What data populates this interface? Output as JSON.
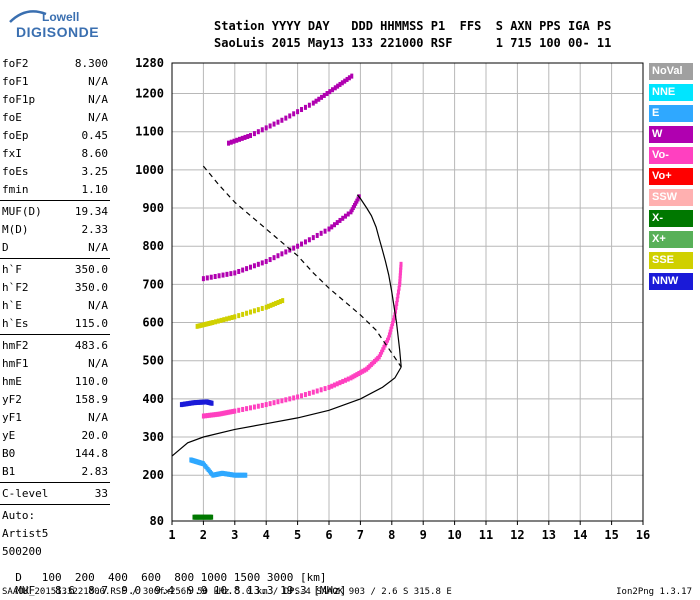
{
  "logo": {
    "line1": "Lowell",
    "line2": "DIGISONDE"
  },
  "header": {
    "line1": "Station YYYY DAY   DDD HHMMSS P1  FFS  S AXN PPS IGA PS",
    "line2": "SaoLuis 2015 May13 133 221000 RSF      1 715 100 00- 11"
  },
  "params": [
    {
      "k": "foF2",
      "v": "8.300"
    },
    {
      "k": "foF1",
      "v": "N/A"
    },
    {
      "k": "foF1p",
      "v": "N/A"
    },
    {
      "k": "foE",
      "v": "N/A"
    },
    {
      "k": "foEp",
      "v": "0.45"
    },
    {
      "k": "fxI",
      "v": "8.60"
    },
    {
      "k": "foEs",
      "v": "3.25"
    },
    {
      "k": "fmin",
      "v": "1.10"
    },
    {
      "k": "MUF(D)",
      "v": "19.34"
    },
    {
      "k": "M(D)",
      "v": "2.33"
    },
    {
      "k": "D",
      "v": "N/A"
    },
    {
      "k": "h`F",
      "v": "350.0"
    },
    {
      "k": "h`F2",
      "v": "350.0"
    },
    {
      "k": "h`E",
      "v": "N/A"
    },
    {
      "k": "h`Es",
      "v": "115.0"
    },
    {
      "k": "hmF2",
      "v": "483.6"
    },
    {
      "k": "hmF1",
      "v": "N/A"
    },
    {
      "k": "hmE",
      "v": "110.0"
    },
    {
      "k": "yF2",
      "v": "158.9"
    },
    {
      "k": "yF1",
      "v": "N/A"
    },
    {
      "k": "yE",
      "v": "20.0"
    },
    {
      "k": "B0",
      "v": "144.8"
    },
    {
      "k": "B1",
      "v": "2.83"
    },
    {
      "k": "C-level",
      "v": "33"
    }
  ],
  "autoscale": {
    "label": "Auto:",
    "artist": "Artist5",
    "version": "500200"
  },
  "legend": [
    {
      "label": "NoVal",
      "color": "#a0a0a0"
    },
    {
      "label": "NNE",
      "color": "#00e5ff"
    },
    {
      "label": "E",
      "color": "#2fa8ff"
    },
    {
      "label": "W",
      "color": "#b000b0"
    },
    {
      "label": "Vo-",
      "color": "#ff40c0"
    },
    {
      "label": "Vo+",
      "color": "#ff0000"
    },
    {
      "label": "SSW",
      "color": "#ffb0b0"
    },
    {
      "label": "X-",
      "color": "#007800"
    },
    {
      "label": "X+",
      "color": "#58b058"
    },
    {
      "label": "SSE",
      "color": "#d0d000"
    },
    {
      "label": "NNW",
      "color": "#1a1ad8"
    }
  ],
  "chart_data": {
    "type": "scatter",
    "xlim": [
      1,
      16
    ],
    "ylim": [
      80,
      1280
    ],
    "x_ticks": [
      "1",
      "2",
      "3",
      "4",
      "5",
      "6",
      "7",
      "8",
      "9",
      "10",
      "11",
      "12",
      "13",
      "14",
      "15",
      "16"
    ],
    "y_ticks": [
      "80",
      "200",
      "300",
      "400",
      "500",
      "600",
      "700",
      "800",
      "900",
      "1000",
      "1100",
      "1200",
      "1280"
    ],
    "y_tick_values": [
      80,
      200,
      300,
      400,
      500,
      600,
      700,
      800,
      900,
      1000,
      1100,
      1200,
      1280
    ],
    "grid": true,
    "echo_traces": [
      {
        "name": "E sporadic low",
        "color": "#007800",
        "points": [
          [
            1.7,
            90
          ],
          [
            2.0,
            90
          ],
          [
            2.3,
            90
          ]
        ]
      },
      {
        "name": "F trace",
        "color": "#ff40c0",
        "points": [
          [
            2.0,
            355
          ],
          [
            2.5,
            360
          ],
          [
            3.0,
            368
          ],
          [
            4.0,
            385
          ],
          [
            5.0,
            405
          ],
          [
            6.0,
            430
          ],
          [
            6.7,
            455
          ],
          [
            7.2,
            478
          ],
          [
            7.6,
            510
          ],
          [
            7.9,
            560
          ],
          [
            8.1,
            620
          ],
          [
            8.25,
            700
          ],
          [
            8.3,
            760
          ]
        ]
      },
      {
        "name": "F 2nd hop",
        "color": "#b000b0",
        "points": [
          [
            2.0,
            715
          ],
          [
            3.0,
            730
          ],
          [
            4.0,
            760
          ],
          [
            5.0,
            800
          ],
          [
            6.0,
            845
          ],
          [
            6.7,
            890
          ],
          [
            7.0,
            935
          ]
        ]
      },
      {
        "name": "F 3rd hop",
        "color": "#b000b0",
        "points": [
          [
            2.8,
            1070
          ],
          [
            3.5,
            1090
          ],
          [
            4.5,
            1130
          ],
          [
            5.5,
            1175
          ],
          [
            6.2,
            1215
          ],
          [
            6.8,
            1250
          ]
        ]
      },
      {
        "name": "Es multiple",
        "color": "#d0d000",
        "points": [
          [
            1.8,
            590
          ],
          [
            2.3,
            600
          ],
          [
            3.0,
            615
          ],
          [
            4.0,
            640
          ],
          [
            4.6,
            660
          ]
        ]
      },
      {
        "name": "Es layer",
        "color": "#1a1ad8",
        "points": [
          [
            1.3,
            385
          ],
          [
            1.7,
            390
          ],
          [
            2.1,
            392
          ],
          [
            2.3,
            388
          ]
        ]
      },
      {
        "name": "Oblique E",
        "color": "#2fa8ff",
        "points": [
          [
            1.6,
            240
          ],
          [
            1.8,
            235
          ],
          [
            2.0,
            230
          ],
          [
            2.3,
            200
          ],
          [
            2.6,
            205
          ],
          [
            3.0,
            200
          ],
          [
            3.4,
            200
          ]
        ]
      }
    ],
    "profile_solid": [
      [
        1.0,
        250
      ],
      [
        1.5,
        285
      ],
      [
        2.0,
        300
      ],
      [
        3.0,
        320
      ],
      [
        4.0,
        335
      ],
      [
        5.0,
        350
      ],
      [
        6.0,
        370
      ],
      [
        7.0,
        400
      ],
      [
        7.7,
        430
      ],
      [
        8.1,
        455
      ],
      [
        8.3,
        483.6
      ]
    ],
    "profile_upper": [
      [
        8.3,
        483.6
      ],
      [
        8.25,
        530
      ],
      [
        8.15,
        600
      ],
      [
        8.0,
        680
      ],
      [
        7.9,
        725
      ],
      [
        7.8,
        760
      ],
      [
        7.7,
        790
      ],
      [
        7.6,
        820
      ],
      [
        7.5,
        850
      ],
      [
        7.35,
        880
      ],
      [
        7.2,
        900
      ],
      [
        7.0,
        925
      ],
      [
        6.9,
        935
      ]
    ],
    "profile_dashed": [
      [
        2.0,
        1010
      ],
      [
        2.5,
        960
      ],
      [
        3.0,
        915
      ],
      [
        4.0,
        845
      ],
      [
        5.0,
        775
      ],
      [
        5.5,
        730
      ],
      [
        6.0,
        690
      ],
      [
        7.0,
        620
      ],
      [
        7.5,
        580
      ],
      [
        8.0,
        520
      ],
      [
        8.3,
        483.6
      ]
    ],
    "muf_table": {
      "d_label": "D",
      "muf_label": "MUF",
      "distances": [
        "100",
        "200",
        "400",
        "600",
        "800",
        "1000",
        "1500",
        "3000"
      ],
      "mufs": [
        "8.6",
        "8.7",
        "9.0",
        "9.4",
        "9.9",
        "10.8",
        "13.3",
        "19.3"
      ],
      "d_unit": "[km]",
      "muf_unit": "[MHz]"
    }
  },
  "footer_line": "SAAOK_2015133221000.RSF / 300fx256h 50 kHz 5.0 km / DPS-4 SAAOK 903 / 2.6 S 315.8 E",
  "footer_version": "Ion2Png 1.3.17"
}
